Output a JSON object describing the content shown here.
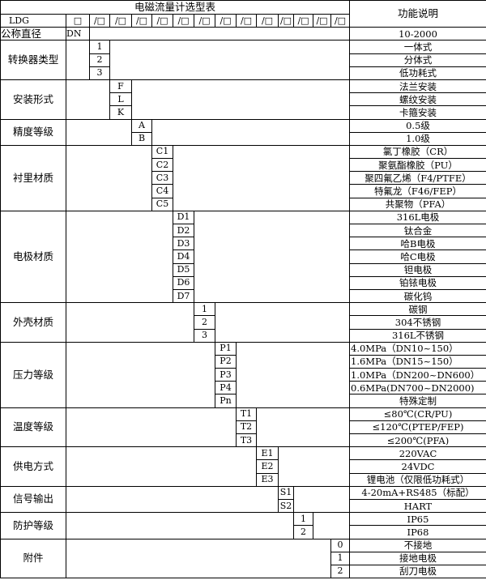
{
  "title": "电磁流量计选型表",
  "function_header": "功能说明",
  "model_row": {
    "prefix": "LDG",
    "cells": [
      "□",
      "/□",
      "/□",
      "/□",
      "/□",
      "/□",
      "/□",
      "/□",
      "/□",
      "/□",
      "/□",
      "/□",
      "/□",
      "/□"
    ]
  },
  "nominal": {
    "label": "公称直径",
    "code": "DN",
    "desc": "10-2000"
  },
  "groups": [
    {
      "label": "转换器类型",
      "col": 0,
      "options": [
        {
          "code": "1",
          "desc": "一体式"
        },
        {
          "code": "2",
          "desc": "分体式"
        },
        {
          "code": "3",
          "desc": "低功耗式"
        }
      ]
    },
    {
      "label": "安装形式",
      "col": 1,
      "options": [
        {
          "code": "F",
          "desc": "法兰安装"
        },
        {
          "code": "L",
          "desc": "螺纹安装"
        },
        {
          "code": "K",
          "desc": "卡箍安装"
        }
      ]
    },
    {
      "label": "精度等级",
      "col": 2,
      "options": [
        {
          "code": "A",
          "desc": "0.5级"
        },
        {
          "code": "B",
          "desc": "1.0级"
        }
      ]
    },
    {
      "label": "衬里材质",
      "col": 3,
      "options": [
        {
          "code": "C1",
          "desc": "氯丁橡胶（CR）"
        },
        {
          "code": "C2",
          "desc": "聚氨酯橡胶（PU）"
        },
        {
          "code": "C3",
          "desc": "聚四氟乙烯（F4/PTFE）"
        },
        {
          "code": "C4",
          "desc": "特氟龙（F46/FEP）"
        },
        {
          "code": "C5",
          "desc": "共聚物（PFA）"
        }
      ]
    },
    {
      "label": "电极材质",
      "col": 4,
      "options": [
        {
          "code": "D1",
          "desc": "316L电极"
        },
        {
          "code": "D2",
          "desc": "钛合金"
        },
        {
          "code": "D3",
          "desc": "哈B电极"
        },
        {
          "code": "D4",
          "desc": "哈C电极"
        },
        {
          "code": "D5",
          "desc": "钽电极"
        },
        {
          "code": "D6",
          "desc": "铂铱电极"
        },
        {
          "code": "D7",
          "desc": "碳化钨"
        }
      ]
    },
    {
      "label": "外壳材质",
      "col": 5,
      "options": [
        {
          "code": "1",
          "desc": "碳钢"
        },
        {
          "code": "2",
          "desc": "304不锈钢"
        },
        {
          "code": "3",
          "desc": "316L不锈钢"
        }
      ]
    },
    {
      "label": "压力等级",
      "col": 6,
      "options": [
        {
          "code": "P1",
          "desc": "4.0MPa（DN10~150）",
          "left": true
        },
        {
          "code": "P2",
          "desc": "1.6MPa（DN15~150）",
          "left": true
        },
        {
          "code": "P3",
          "desc": "1.0MPa（DN200~DN600）",
          "left": true
        },
        {
          "code": "P4",
          "desc": "0.6MPa(DN700~DN2000)",
          "left": true
        },
        {
          "code": "Pn",
          "desc": "特殊定制"
        }
      ]
    },
    {
      "label": "温度等级",
      "col": 7,
      "options": [
        {
          "code": "T1",
          "desc": "≤80℃(CR/PU)"
        },
        {
          "code": "T2",
          "desc": "≤120℃(PTEP/FEP)"
        },
        {
          "code": "T3",
          "desc": "≤200℃(PFA)"
        }
      ]
    },
    {
      "label": "供电方式",
      "col": 8,
      "options": [
        {
          "code": "E1",
          "desc": "220VAC"
        },
        {
          "code": "E2",
          "desc": "24VDC"
        },
        {
          "code": "E3",
          "desc": "锂电池（仅限低功耗式）"
        }
      ]
    },
    {
      "label": "信号输出",
      "col": 9,
      "options": [
        {
          "code": "S1",
          "desc": "4-20mA+RS485（标配）"
        },
        {
          "code": "S2",
          "desc": "HART"
        }
      ]
    },
    {
      "label": "防护等级",
      "col": 10,
      "options": [
        {
          "code": "1",
          "desc": "IP65"
        },
        {
          "code": "2",
          "desc": "IP68"
        }
      ]
    },
    {
      "label": "附件",
      "col": 12,
      "options": [
        {
          "code": "0",
          "desc": "不接地"
        },
        {
          "code": "1",
          "desc": "接地电极"
        },
        {
          "code": "2",
          "desc": "刮刀电极"
        }
      ]
    }
  ]
}
